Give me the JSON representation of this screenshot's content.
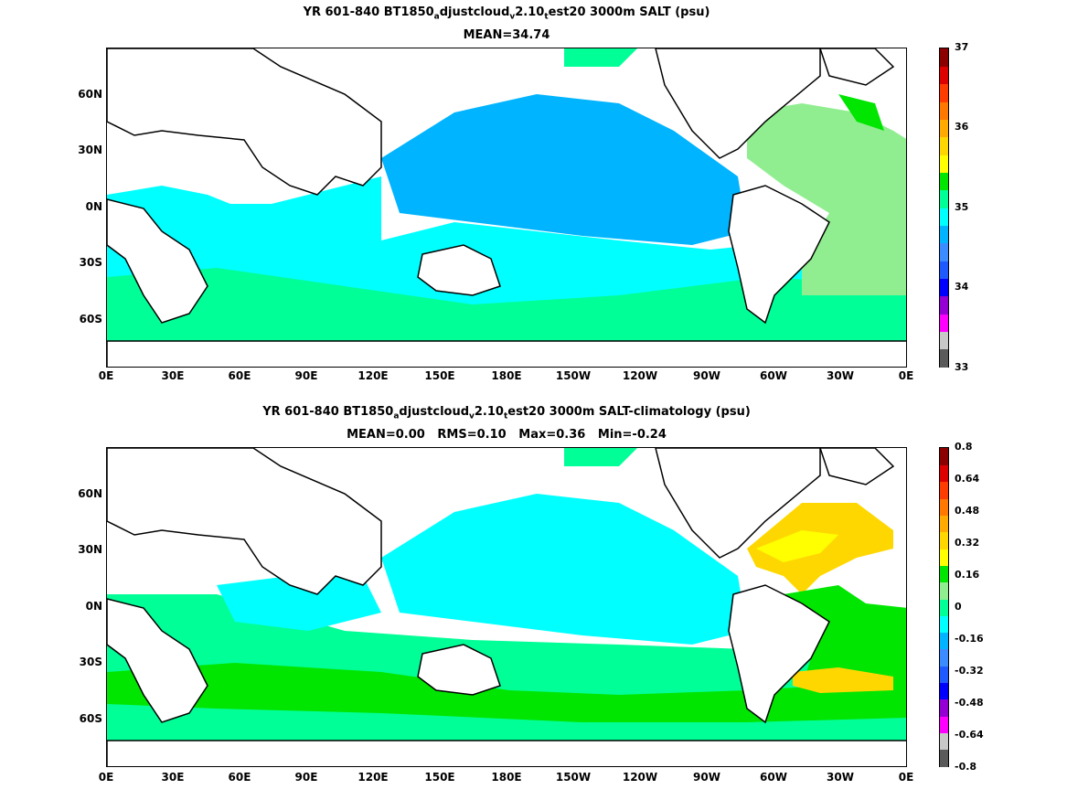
{
  "panels": [
    {
      "title_parts": [
        "YR 601-840 BT1850",
        "a",
        "djustcloud",
        "v",
        "2.10",
        "t",
        "est20 3000m SALT (psu)"
      ],
      "subtitle": "MEAN=34.74",
      "colorbar": {
        "ticks": [
          "37",
          "36",
          "35",
          "34",
          "33"
        ],
        "colors": [
          "#5a5a5a",
          "#c8c8c8",
          "#ff00ff",
          "#9400d3",
          "#0000ff",
          "#1e5aff",
          "#3c8cff",
          "#00b4ff",
          "#00ffff",
          "#00ff96",
          "#00e600",
          "#ffff00",
          "#ffd700",
          "#ffaa00",
          "#ff7800",
          "#ff3c00",
          "#dc0000",
          "#8b0000"
        ]
      }
    },
    {
      "title_parts": [
        "YR 601-840 BT1850",
        "a",
        "djustcloud",
        "v",
        "2.10",
        "t",
        "est20 3000m SALT-climatology (psu)"
      ],
      "subtitle": "MEAN=0.00   RMS=0.10   Max=0.36   Min=-0.24",
      "colorbar": {
        "ticks": [
          "0.8",
          "0.64",
          "0.48",
          "0.32",
          "0.16",
          "0",
          "-0.16",
          "-0.32",
          "-0.48",
          "-0.64",
          "-0.8"
        ],
        "colors": [
          "#5a5a5a",
          "#c8c8c8",
          "#ff00ff",
          "#9400d3",
          "#0000ff",
          "#1e5aff",
          "#3c8cff",
          "#00b4ff",
          "#00ffff",
          "#00ff96",
          "#90ee90",
          "#00e600",
          "#ffff00",
          "#ffd700",
          "#ffaa00",
          "#ff7800",
          "#ff3c00",
          "#dc0000",
          "#8b0000"
        ]
      }
    }
  ],
  "axes": {
    "y_ticks": [
      "60N",
      "30N",
      "0N",
      "30S",
      "60S"
    ],
    "x_ticks": [
      "0E",
      "30E",
      "60E",
      "90E",
      "120E",
      "150E",
      "180E",
      "150W",
      "120W",
      "90W",
      "60W",
      "30W",
      "0E"
    ]
  },
  "colors": {
    "land": "#ffffff",
    "coast": "#000000",
    "salt_pacific": "#00b4ff",
    "salt_mid": "#00ffff",
    "salt_south": "#00ff96",
    "salt_atlantic": "#90ee90",
    "diff_pos": "#00e600",
    "diff_yellow": "#ffff00",
    "diff_gold": "#ffd700"
  }
}
